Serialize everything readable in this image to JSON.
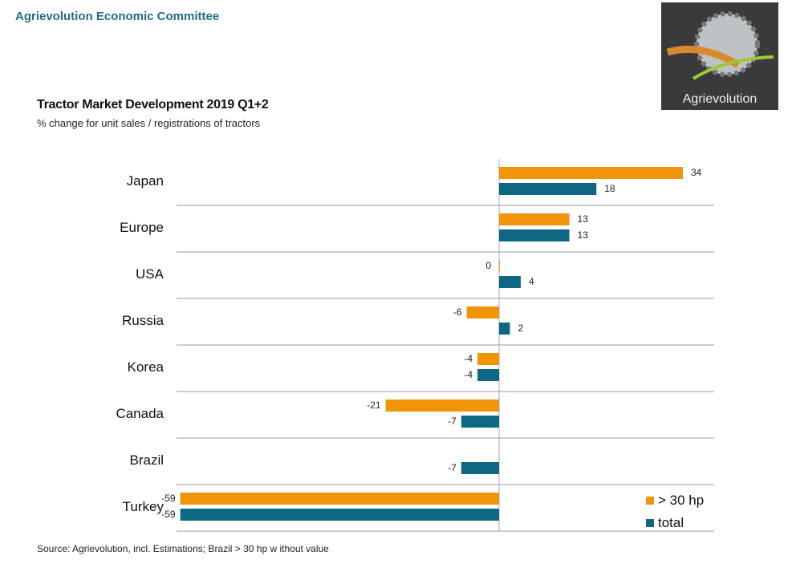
{
  "header": {
    "org": "Agrievolution Economic Committee",
    "logo_text": "Agrievolution"
  },
  "chart_data": {
    "type": "bar",
    "orientation": "horizontal",
    "title": "Tractor Market Development 2019 Q1+2",
    "subtitle": "% change for unit sales / registrations of tractors",
    "categories": [
      "Japan",
      "Europe",
      "USA",
      "Russia",
      "Korea",
      "Canada",
      "Brazil",
      "Turkey"
    ],
    "series": [
      {
        "name": "> 30 hp",
        "color": "#f0940a",
        "values": [
          34,
          13,
          0,
          -6,
          -4,
          -21,
          null,
          -59
        ]
      },
      {
        "name": "total",
        "color": "#0f6883",
        "values": [
          18,
          13,
          4,
          2,
          -4,
          -7,
          -7,
          -59
        ]
      }
    ],
    "xlim": [
      -60,
      40
    ],
    "legend": "bottom-right",
    "source": "Source: Agrievolution, incl. Estimations; Brazil > 30 hp w ithout value"
  }
}
